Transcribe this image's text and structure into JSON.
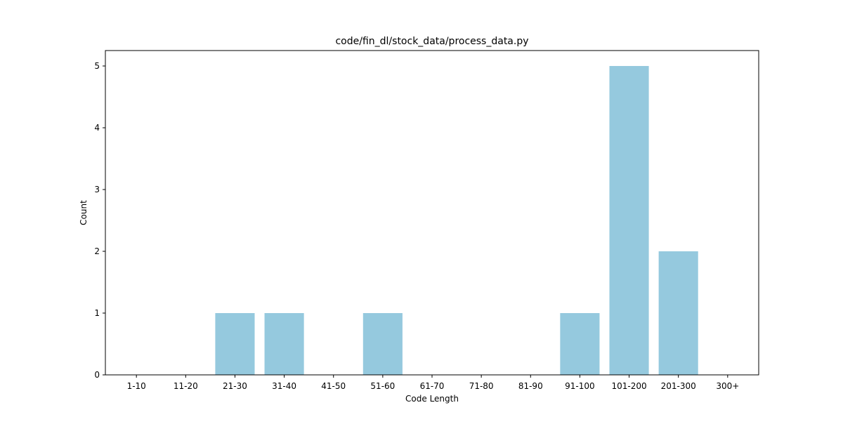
{
  "chart_data": {
    "type": "bar",
    "title": "code/fin_dl/stock_data/process_data.py",
    "xlabel": "Code Length",
    "ylabel": "Count",
    "categories": [
      "1-10",
      "11-20",
      "21-30",
      "31-40",
      "41-50",
      "51-60",
      "61-70",
      "71-80",
      "81-90",
      "91-100",
      "101-200",
      "201-300",
      "300+"
    ],
    "values": [
      0,
      0,
      1,
      1,
      0,
      1,
      0,
      0,
      0,
      1,
      5,
      2,
      0
    ],
    "ylim": [
      0,
      5.25
    ],
    "yticks": [
      0,
      1,
      2,
      3,
      4,
      5
    ],
    "grid": false,
    "bar_color": "#95c9de"
  }
}
